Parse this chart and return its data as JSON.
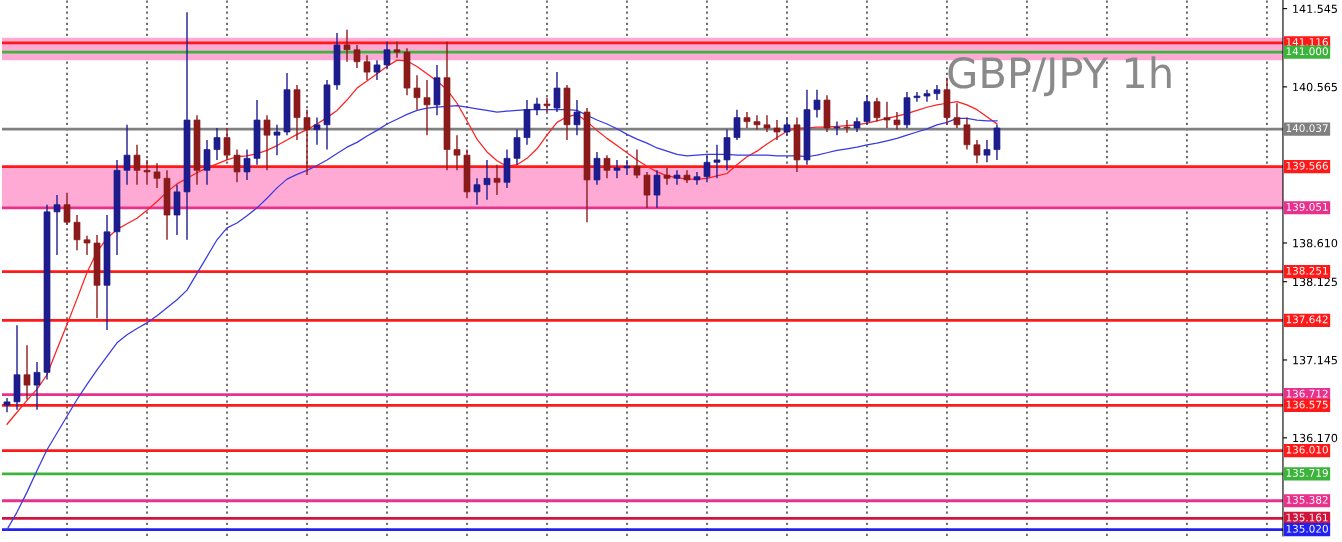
{
  "chart_data": {
    "type": "candlestick",
    "categories": [
      null,
      null,
      null,
      null,
      null,
      null,
      null,
      null,
      null,
      null,
      null,
      null,
      null,
      null,
      null,
      null,
      null,
      null,
      null,
      null,
      null,
      null,
      null,
      null,
      null,
      null,
      null,
      null,
      null,
      null,
      null,
      null,
      null,
      null,
      null,
      null,
      null,
      null,
      null,
      null,
      null,
      null,
      null,
      null,
      null,
      null,
      null,
      null,
      null,
      null,
      null,
      null,
      null,
      null,
      null,
      null,
      null,
      null,
      null,
      null,
      null,
      null,
      null,
      null,
      null,
      null,
      null,
      null,
      null,
      null,
      null,
      null,
      null,
      null,
      null,
      null,
      null,
      null,
      null,
      null,
      null,
      null,
      null,
      null,
      null,
      null,
      null,
      null,
      null,
      null,
      null,
      null,
      null,
      null,
      null,
      null,
      null,
      null,
      null,
      null
    ],
    "series": [
      {
        "colors": [
          "#1c1c8c",
          "#1c1c8c",
          "#8b1a1a",
          "#1c1c8c",
          "#1c1c8c",
          "#1c1c8c",
          "#8b1a1a",
          "#8b1a1a",
          "#8b1a1a",
          "#8b1a1a",
          "#1c1c8c",
          "#1c1c8c",
          "#1c1c8c",
          "#8b1a1a",
          "#8b1a1a",
          "#8b1a1a",
          "#8b1a1a",
          "#1c1c8c",
          "#1c1c8c",
          "#8b1a1a",
          "#1c1c8c",
          "#1c1c8c",
          "#8b1a1a",
          "#8b1a1a",
          "#1c1c8c",
          "#1c1c8c",
          "#8b1a1a",
          "#1c1c8c",
          "#1c1c8c",
          "#8b1a1a",
          "#8b1a1a",
          "#1c1c8c",
          "#1c1c8c",
          "#1c1c8c",
          "#8b1a1a",
          "#8b1a1a",
          "#8b1a1a",
          "#1c1c8c",
          "#1c1c8c",
          "#8b1a1a",
          "#8b1a1a",
          "#8b1a1a",
          "#8b1a1a",
          "#1c1c8c",
          "#8b1a1a",
          "#8b1a1a",
          "#8b1a1a",
          "#1c1c8c",
          "#1c1c8c",
          "#8b1a1a",
          "#1c1c8c",
          "#1c1c8c",
          "#1c1c8c",
          "#1c1c8c",
          "#8b1a1a",
          "#1c1c8c",
          "#8b1a1a",
          "#1c1c8c",
          "#8b1a1a",
          "#1c1c8c",
          "#8b1a1a",
          "#1c1c8c",
          "#1c1c8c",
          "#8b1a1a",
          "#8b1a1a",
          "#1c1c8c",
          "#8b1a1a",
          "#1c1c8c",
          "#8b1a1a",
          "#1c1c8c",
          "#1c1c8c",
          "#1c1c8c",
          "#1c1c8c",
          "#1c1c8c",
          "#8b1a1a",
          "#8b1a1a",
          "#8b1a1a",
          "#8b1a1a",
          "#1c1c8c",
          "#8b1a1a",
          "#1c1c8c",
          "#1c1c8c",
          "#8b1a1a",
          "#1c1c8c",
          "#8b1a1a",
          "#1c1c8c",
          "#1c1c8c",
          "#8b1a1a",
          "#8b1a1a",
          "#8b1a1a",
          "#1c1c8c",
          "#1c1c8c",
          "#1c1c8c",
          "#1c1c8c",
          "#8b1a1a",
          "#8b1a1a",
          "#8b1a1a",
          "#8b1a1a",
          "#1c1c8c",
          "#1c1c8c"
        ],
        "ohlc": [
          [
            136.58,
            136.67,
            136.49,
            136.62
          ],
          [
            136.62,
            137.58,
            136.52,
            136.96
          ],
          [
            136.96,
            137.33,
            136.65,
            136.83
          ],
          [
            136.83,
            137.12,
            136.52,
            136.99
          ],
          [
            136.99,
            139.09,
            136.9,
            139.0
          ],
          [
            139.0,
            139.21,
            138.46,
            139.09
          ],
          [
            139.09,
            139.24,
            138.84,
            138.87
          ],
          [
            138.87,
            138.96,
            138.52,
            138.65
          ],
          [
            138.65,
            138.7,
            138.46,
            138.61
          ],
          [
            138.61,
            138.71,
            137.67,
            138.08
          ],
          [
            138.08,
            138.96,
            137.52,
            138.75
          ],
          [
            138.75,
            139.65,
            138.46,
            139.52
          ],
          [
            139.52,
            140.09,
            139.34,
            139.71
          ],
          [
            139.71,
            139.84,
            139.34,
            139.52
          ],
          [
            139.52,
            139.65,
            139.34,
            139.5
          ],
          [
            139.5,
            139.61,
            139.3,
            139.42
          ],
          [
            139.42,
            139.52,
            138.65,
            138.96
          ],
          [
            138.96,
            139.34,
            138.71,
            139.25
          ],
          [
            139.25,
            141.5,
            138.65,
            140.15
          ],
          [
            140.15,
            140.21,
            139.34,
            139.52
          ],
          [
            139.52,
            139.9,
            139.34,
            139.78
          ],
          [
            139.78,
            140.05,
            139.65,
            139.93
          ],
          [
            139.93,
            140.05,
            139.65,
            139.71
          ],
          [
            139.71,
            139.78,
            139.37,
            139.5
          ],
          [
            139.5,
            139.78,
            139.4,
            139.67
          ],
          [
            139.67,
            140.4,
            139.59,
            140.15
          ],
          [
            140.15,
            140.21,
            139.52,
            139.96
          ],
          [
            139.96,
            140.09,
            139.71,
            140.0
          ],
          [
            140.0,
            140.74,
            139.96,
            140.53
          ],
          [
            140.53,
            140.59,
            139.9,
            140.18
          ],
          [
            140.18,
            140.28,
            139.46,
            140.03
          ],
          [
            140.03,
            140.18,
            139.84,
            140.09
          ],
          [
            140.09,
            140.65,
            139.78,
            140.59
          ],
          [
            140.59,
            141.24,
            140.53,
            141.09
          ],
          [
            141.09,
            141.28,
            140.88,
            141.03
          ],
          [
            141.03,
            141.09,
            140.8,
            140.88
          ],
          [
            140.88,
            140.96,
            140.65,
            140.75
          ],
          [
            140.75,
            140.9,
            140.65,
            140.84
          ],
          [
            140.84,
            141.13,
            140.8,
            141.03
          ],
          [
            141.03,
            141.13,
            140.93,
            141.0
          ],
          [
            141.0,
            141.05,
            140.46,
            140.55
          ],
          [
            140.55,
            140.71,
            140.28,
            140.43
          ],
          [
            140.43,
            140.65,
            139.96,
            140.34
          ],
          [
            140.34,
            140.84,
            140.21,
            140.68
          ],
          [
            140.68,
            141.13,
            139.52,
            139.78
          ],
          [
            139.78,
            139.96,
            139.52,
            139.71
          ],
          [
            139.71,
            139.78,
            139.17,
            139.25
          ],
          [
            139.25,
            139.42,
            139.09,
            139.34
          ],
          [
            139.34,
            139.65,
            139.15,
            139.42
          ],
          [
            139.42,
            139.59,
            139.21,
            139.37
          ],
          [
            139.37,
            139.78,
            139.3,
            139.67
          ],
          [
            139.67,
            140.03,
            139.59,
            139.93
          ],
          [
            139.93,
            140.4,
            139.84,
            140.28
          ],
          [
            140.28,
            140.43,
            140.21,
            140.35
          ],
          [
            140.35,
            140.43,
            140.25,
            140.33
          ],
          [
            140.3,
            140.75,
            140.25,
            140.55
          ],
          [
            140.55,
            140.59,
            139.9,
            140.09
          ],
          [
            140.09,
            140.4,
            139.96,
            140.25
          ],
          [
            140.25,
            140.3,
            138.87,
            139.4
          ],
          [
            139.4,
            139.75,
            139.34,
            139.67
          ],
          [
            139.67,
            139.71,
            139.42,
            139.52
          ],
          [
            139.52,
            139.65,
            139.42,
            139.55
          ],
          [
            139.55,
            139.65,
            139.46,
            139.57
          ],
          [
            139.57,
            139.78,
            139.42,
            139.46
          ],
          [
            139.46,
            139.5,
            139.05,
            139.21
          ],
          [
            139.21,
            139.52,
            139.05,
            139.46
          ],
          [
            139.46,
            139.55,
            139.34,
            139.42
          ],
          [
            139.42,
            139.52,
            139.34,
            139.46
          ],
          [
            139.46,
            139.52,
            139.36,
            139.4
          ],
          [
            139.4,
            139.5,
            139.34,
            139.44
          ],
          [
            139.44,
            139.71,
            139.37,
            139.62
          ],
          [
            139.62,
            139.84,
            139.42,
            139.65
          ],
          [
            139.65,
            140.03,
            139.52,
            139.93
          ],
          [
            139.93,
            140.28,
            139.9,
            140.18
          ],
          [
            140.18,
            140.25,
            140.05,
            140.13
          ],
          [
            140.13,
            140.21,
            140.03,
            140.09
          ],
          [
            140.09,
            140.21,
            140.0,
            140.05
          ],
          [
            140.05,
            140.15,
            139.9,
            140.0
          ],
          [
            140.0,
            140.18,
            139.96,
            140.09
          ],
          [
            140.09,
            140.18,
            139.5,
            139.65
          ],
          [
            139.65,
            140.53,
            139.59,
            140.28
          ],
          [
            140.28,
            140.53,
            140.18,
            140.4
          ],
          [
            140.4,
            140.46,
            140.0,
            140.05
          ],
          [
            140.05,
            140.13,
            139.96,
            140.06
          ],
          [
            140.06,
            140.15,
            139.99,
            140.05
          ],
          [
            140.05,
            140.18,
            140.0,
            140.13
          ],
          [
            140.13,
            140.46,
            140.09,
            140.38
          ],
          [
            140.38,
            140.43,
            140.13,
            140.18
          ],
          [
            140.18,
            140.38,
            140.05,
            140.15
          ],
          [
            140.15,
            140.25,
            140.03,
            140.09
          ],
          [
            140.09,
            140.5,
            140.05,
            140.43
          ],
          [
            140.43,
            140.5,
            140.38,
            140.45
          ],
          [
            140.45,
            140.53,
            140.38,
            140.48
          ],
          [
            140.48,
            140.59,
            140.4,
            140.53
          ],
          [
            140.53,
            140.68,
            140.09,
            140.18
          ],
          [
            140.18,
            140.36,
            140.05,
            140.09
          ],
          [
            140.09,
            140.18,
            139.78,
            139.84
          ],
          [
            139.84,
            139.9,
            139.61,
            139.71
          ],
          [
            139.71,
            139.9,
            139.62,
            139.78
          ],
          [
            139.78,
            140.09,
            139.65,
            140.05
          ]
        ]
      },
      {
        "type": "line",
        "color": "#ff2020",
        "values": [
          136.34,
          136.49,
          136.64,
          136.78,
          136.96,
          137.28,
          137.59,
          137.91,
          138.24,
          138.5,
          138.67,
          138.78,
          138.85,
          138.92,
          139.02,
          139.13,
          139.25,
          139.35,
          139.42,
          139.49,
          139.55,
          139.6,
          139.65,
          139.69,
          139.7,
          139.73,
          139.77,
          139.83,
          139.9,
          139.97,
          140.03,
          140.1,
          140.18,
          140.27,
          140.4,
          140.55,
          140.64,
          140.73,
          140.82,
          140.9,
          140.89,
          140.82,
          140.73,
          140.64,
          140.53,
          140.36,
          140.14,
          139.91,
          139.75,
          139.64,
          139.57,
          139.59,
          139.67,
          139.79,
          139.96,
          140.12,
          140.19,
          140.22,
          140.13,
          140.02,
          139.92,
          139.83,
          139.74,
          139.65,
          139.57,
          139.5,
          139.45,
          139.43,
          139.41,
          139.41,
          139.42,
          139.45,
          139.48,
          139.59,
          139.69,
          139.76,
          139.85,
          139.93,
          140.01,
          140.05,
          140.05,
          140.06,
          140.06,
          140.07,
          140.08,
          140.09,
          140.11,
          140.14,
          140.17,
          140.2,
          140.23,
          140.27,
          140.31,
          140.34,
          140.36,
          140.38,
          140.34,
          140.28,
          140.19,
          140.1
        ]
      },
      {
        "type": "line",
        "color": "#3a3ae0",
        "values": [
          135.02,
          135.24,
          135.49,
          135.76,
          136.02,
          136.23,
          136.44,
          136.65,
          136.84,
          137.02,
          137.19,
          137.36,
          137.46,
          137.54,
          137.61,
          137.7,
          137.8,
          137.9,
          138.02,
          138.23,
          138.44,
          138.65,
          138.8,
          138.86,
          138.95,
          139.05,
          139.17,
          139.3,
          139.41,
          139.47,
          139.52,
          139.58,
          139.65,
          139.73,
          139.81,
          139.87,
          139.95,
          140.02,
          140.1,
          140.16,
          140.22,
          140.27,
          140.3,
          140.31,
          140.32,
          140.33,
          140.31,
          140.29,
          140.27,
          140.25,
          140.26,
          140.27,
          140.28,
          140.28,
          140.28,
          140.28,
          140.28,
          140.27,
          140.21,
          140.15,
          140.1,
          140.04,
          139.97,
          139.91,
          139.86,
          139.8,
          139.76,
          139.72,
          139.7,
          139.71,
          139.72,
          139.72,
          139.72,
          139.71,
          139.71,
          139.71,
          139.71,
          139.7,
          139.7,
          139.7,
          139.69,
          139.71,
          139.74,
          139.77,
          139.79,
          139.81,
          139.84,
          139.86,
          139.89,
          139.92,
          139.96,
          140.0,
          140.04,
          140.09,
          140.12,
          140.17,
          140.17,
          140.15,
          140.14,
          140.14
        ]
      }
    ],
    "ylim": [
      134.94,
      141.653
    ],
    "yticks": [
      {
        "value": 141.545,
        "label": "141.545"
      },
      {
        "value": 140.565,
        "label": "140.565"
      },
      {
        "value": 138.61,
        "label": "138.610"
      },
      {
        "value": 138.125,
        "label": "138.125"
      },
      {
        "value": 137.145,
        "label": "137.145"
      },
      {
        "value": 136.17,
        "label": "136.170"
      }
    ],
    "tick_labels": "y",
    "grid": "x",
    "bands": [
      {
        "axis": "y",
        "from": 140.9,
        "to": 141.18,
        "color": "#ffaad4"
      },
      {
        "axis": "y",
        "from": 139.051,
        "to": 139.566,
        "color": "#ffaad4"
      }
    ],
    "ref_lines": [
      {
        "axis": "y",
        "value": 141.116,
        "label": "141.116",
        "color": "#ff1a1a"
      },
      {
        "axis": "y",
        "value": 141.0,
        "label": "141.000",
        "color": "#3cb43c"
      },
      {
        "axis": "y",
        "value": 140.037,
        "label": "140.037",
        "color": "#808080"
      },
      {
        "axis": "y",
        "value": 139.566,
        "label": "139.566",
        "color": "#ff1a1a"
      },
      {
        "axis": "y",
        "value": 139.051,
        "label": "139.051",
        "color": "#e8318c"
      },
      {
        "axis": "y",
        "value": 138.251,
        "label": "138.251",
        "color": "#ff1a1a"
      },
      {
        "axis": "y",
        "value": 137.642,
        "label": "137.642",
        "color": "#ff1a1a"
      },
      {
        "axis": "y",
        "value": 136.712,
        "label": "136.712",
        "color": "#e8318c"
      },
      {
        "axis": "y",
        "value": 136.575,
        "label": "136.575",
        "color": "#ff1a1a"
      },
      {
        "axis": "y",
        "value": 136.01,
        "label": "136.010",
        "color": "#ff1a1a"
      },
      {
        "axis": "y",
        "value": 135.719,
        "label": "135.719",
        "color": "#3cb43c"
      },
      {
        "axis": "y",
        "value": 135.382,
        "label": "135.382",
        "color": "#e8318c"
      },
      {
        "axis": "y",
        "value": 135.161,
        "label": "135.161",
        "color": "#d0143c"
      },
      {
        "axis": "y",
        "value": 135.02,
        "label": "135.020",
        "color": "#2020f0"
      }
    ],
    "annotations": [
      "GBP/JPY 1h"
    ]
  }
}
